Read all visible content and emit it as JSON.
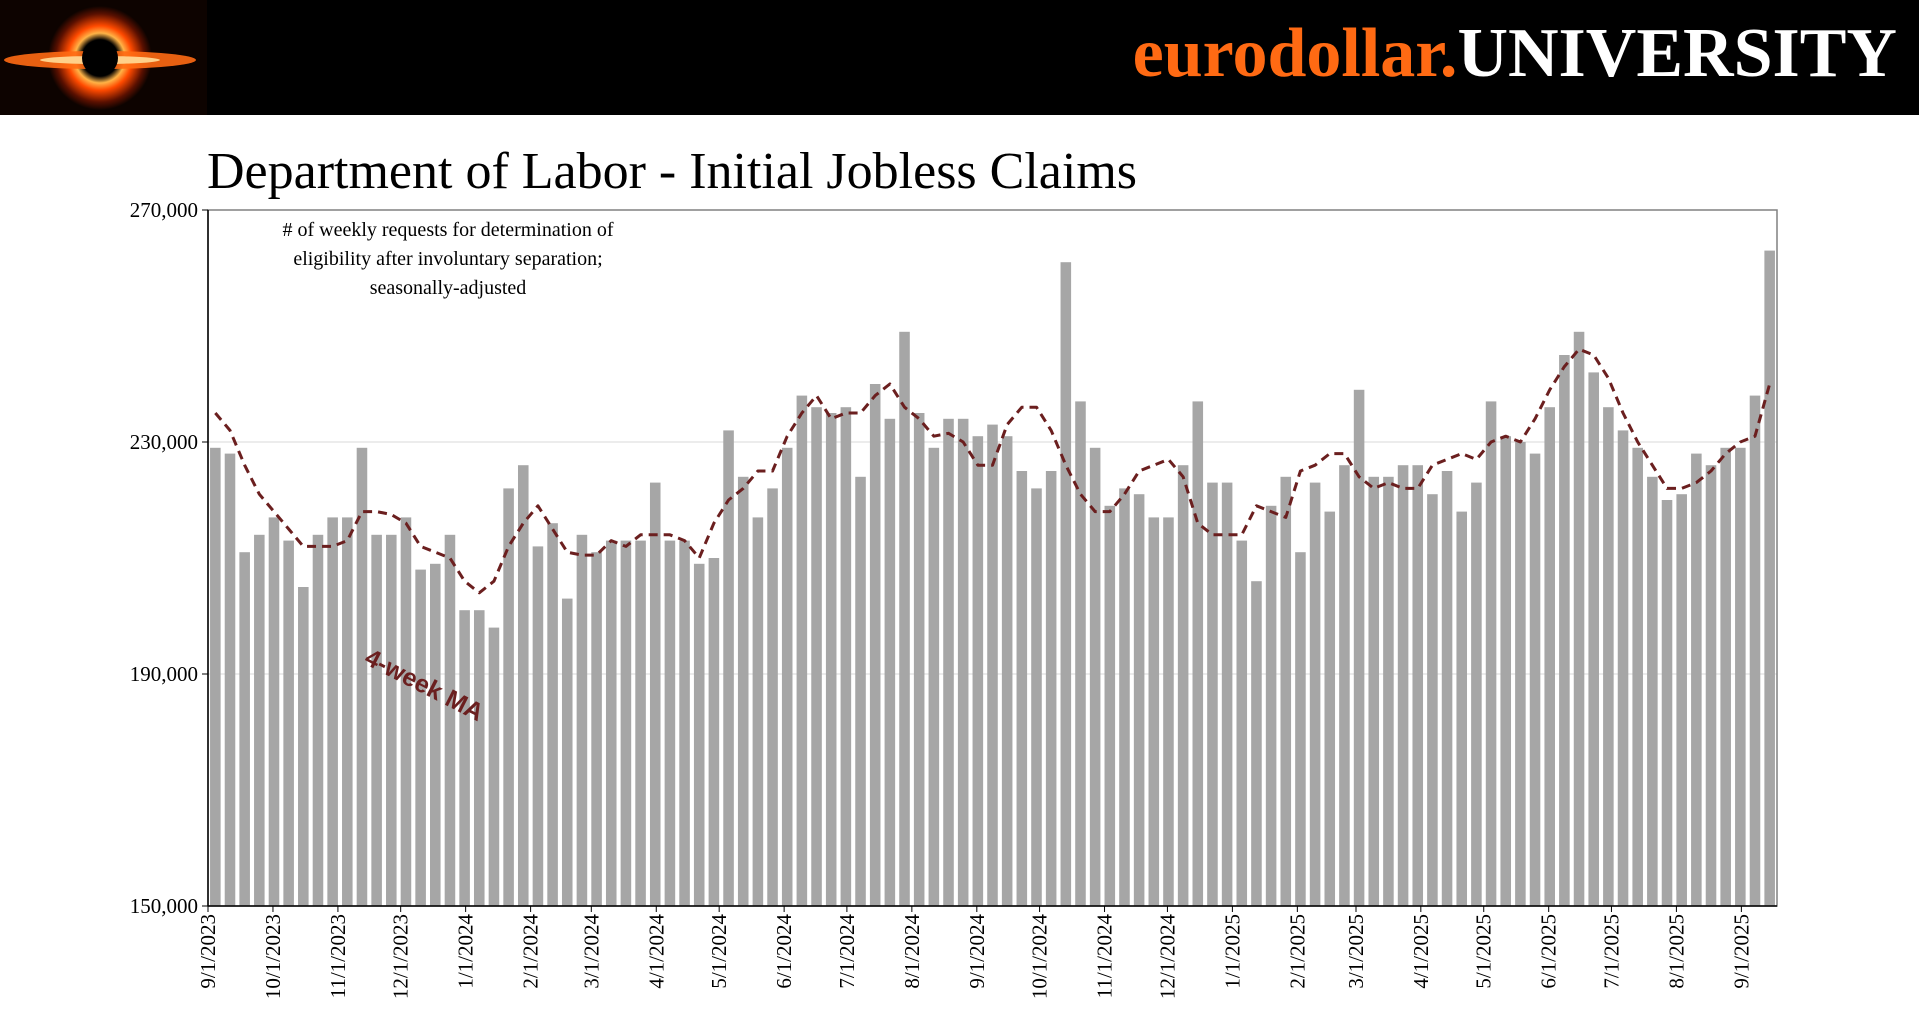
{
  "header": {
    "brand_part1": "eurodollar.",
    "brand_part2": "UNIVERSITY",
    "logo_icon": "black-hole-logo",
    "colors": {
      "background": "#000000",
      "brand_orange": "#ff6a13",
      "brand_white": "#ffffff"
    }
  },
  "chart_data": {
    "type": "bar",
    "title": "Department of Labor - Initial Jobless Claims",
    "annotation": [
      "# of weekly requests for determination of",
      "eligibility after involuntary separation;",
      "seasonally-adjusted"
    ],
    "ma_label": "4-week MA",
    "ylim": [
      150000,
      270000
    ],
    "yticks": [
      150000,
      190000,
      230000,
      270000
    ],
    "ytick_labels": [
      "150,000",
      "190,000",
      "230,000",
      "270,000"
    ],
    "xtick_labels": [
      "9/1/2023",
      "10/1/2023",
      "11/1/2023",
      "12/1/2023",
      "1/1/2024",
      "2/1/2024",
      "3/1/2024",
      "4/1/2024",
      "5/1/2024",
      "6/1/2024",
      "7/1/2024",
      "8/1/2024",
      "9/1/2024",
      "10/1/2024",
      "11/1/2024",
      "12/1/2024",
      "1/1/2025",
      "2/1/2025",
      "3/1/2025",
      "4/1/2025",
      "5/1/2025",
      "6/1/2025",
      "7/1/2025",
      "8/1/2025",
      "9/1/2025"
    ],
    "xtick_weeks": [
      0,
      4.43,
      8.86,
      13.14,
      17.57,
      22,
      26.14,
      30.57,
      34.86,
      39.29,
      43.57,
      48,
      52.43,
      56.71,
      61.14,
      65.43,
      69.86,
      74.29,
      78.29,
      82.71,
      87,
      91.43,
      95.71,
      100.14,
      104.57
    ],
    "grid": "horizontal",
    "series": [
      {
        "name": "Initial Claims",
        "color": "#a6a6a6",
        "values": [
          229000,
          228000,
          211000,
          214000,
          217000,
          213000,
          205000,
          214000,
          217000,
          217000,
          229000,
          214000,
          214000,
          217000,
          208000,
          209000,
          214000,
          201000,
          201000,
          198000,
          222000,
          226000,
          212000,
          216000,
          203000,
          214000,
          211000,
          213000,
          213000,
          213000,
          223000,
          213000,
          213000,
          209000,
          210000,
          232000,
          224000,
          217000,
          222000,
          229000,
          238000,
          236000,
          235000,
          236000,
          224000,
          240000,
          234000,
          249000,
          235000,
          229000,
          234000,
          234000,
          231000,
          233000,
          231000,
          225000,
          222000,
          225000,
          261000,
          237000,
          229000,
          219000,
          222000,
          221000,
          217000,
          217000,
          226000,
          237000,
          223000,
          223000,
          213000,
          206000,
          219000,
          224000,
          211000,
          223000,
          218000,
          226000,
          239000,
          224000,
          224000,
          226000,
          226000,
          221000,
          225000,
          218000,
          223000,
          237000,
          231000,
          230000,
          228000,
          236000,
          245000,
          249000,
          242000,
          236000,
          232000,
          229000,
          224000,
          220000,
          221000,
          228000,
          226000,
          229000,
          229000,
          238000,
          263000
        ]
      },
      {
        "name": "4-week MA",
        "color": "#6b1f1f",
        "values": [
          235000,
          232000,
          226000,
          221000,
          218000,
          215000,
          212000,
          212000,
          212000,
          213000,
          218000,
          218000,
          217500,
          216000,
          212000,
          211000,
          210000,
          206000,
          204000,
          206000,
          212000,
          216000,
          219000,
          215000,
          211000,
          210500,
          210500,
          213000,
          212000,
          214000,
          214000,
          214000,
          213000,
          210000,
          216000,
          220000,
          222000,
          225000,
          225000,
          231000,
          235000,
          238000,
          234000,
          235000,
          235000,
          238000,
          240000,
          236000,
          234000,
          231000,
          231500,
          230000,
          226000,
          226000,
          233000,
          236000,
          236000,
          232000,
          226000,
          221000,
          218000,
          218000,
          221000,
          225000,
          226000,
          227000,
          224000,
          216000,
          214000,
          214000,
          214000,
          219000,
          218000,
          217000,
          225000,
          226000,
          228000,
          228000,
          224000,
          222000,
          223000,
          222000,
          222000,
          226000,
          227000,
          228000,
          227000,
          230000,
          231000,
          230000,
          234000,
          239000,
          243000,
          246000,
          245000,
          241000,
          235000,
          230000,
          226000,
          222000,
          222000,
          223000,
          225000,
          228000,
          230000,
          231000,
          240000
        ]
      }
    ]
  }
}
